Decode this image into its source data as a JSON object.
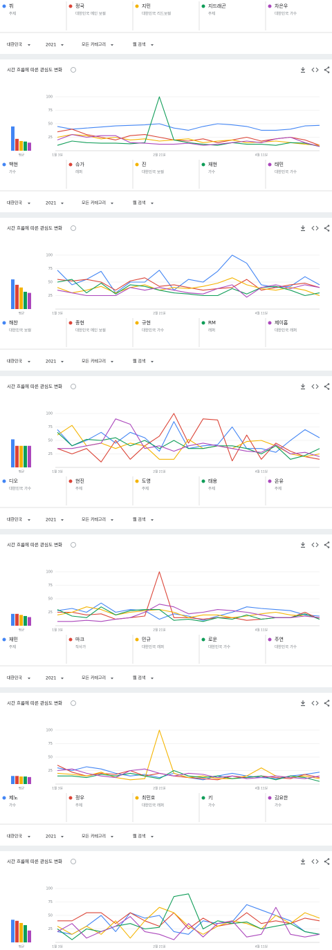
{
  "panels": [
    {
      "filters": [
        "대한민국",
        "2021",
        "모든 카테고리",
        "웹 검색"
      ]
    },
    {
      "filters": [
        "대한민국",
        "2021",
        "모든 카테고리",
        "웹 검색"
      ]
    },
    {
      "filters": [
        "대한민국",
        "2021",
        "모든 카테고리",
        "웹 검색"
      ]
    },
    {
      "filters": [
        "대한민국",
        "2021",
        "모든 카테고리",
        "웹 검색"
      ]
    },
    {
      "filters": [
        "대한민국",
        "2021",
        "모든 카테고리",
        "웹 검색"
      ]
    },
    {
      "filters": [
        "대한민국",
        "2021",
        "모든 카테고리",
        "웹 검색"
      ]
    }
  ],
  "chart_data": [
    {
      "type": "line",
      "title": "시간 흐름에 따른 관심도 변화",
      "average_label": "평균",
      "ylim": [
        0,
        100
      ],
      "yticks": [
        25,
        50,
        75,
        100
      ],
      "grid": true,
      "categories": [
        "1월 3일",
        null,
        null,
        null,
        null,
        null,
        null,
        "2월 21일",
        null,
        null,
        null,
        null,
        null,
        null,
        "4월 11일",
        null,
        null,
        null,
        null
      ],
      "series": [
        {
          "name": "뷔",
          "description": "주제",
          "color": "#4285f4",
          "average": 45,
          "values": [
            45,
            40,
            42,
            44,
            46,
            47,
            48,
            50,
            42,
            38,
            45,
            50,
            48,
            45,
            38,
            38,
            40,
            46,
            47
          ]
        },
        {
          "name": "정국",
          "description": "대한민국 메인 보컬",
          "color": "#db4437",
          "average": 22,
          "values": [
            35,
            40,
            30,
            25,
            20,
            28,
            30,
            25,
            20,
            18,
            22,
            15,
            20,
            25,
            18,
            22,
            25,
            20,
            10
          ]
        },
        {
          "name": "지민",
          "description": "대한민국 리드보컬",
          "color": "#f4b400",
          "average": 18,
          "values": [
            25,
            30,
            28,
            22,
            25,
            20,
            22,
            18,
            20,
            22,
            15,
            18,
            20,
            15,
            16,
            18,
            15,
            12,
            10
          ]
        },
        {
          "name": "지드래곤",
          "description": "주제",
          "color": "#0f9d58",
          "average": 17,
          "values": [
            10,
            18,
            15,
            14,
            14,
            13,
            15,
            100,
            20,
            15,
            12,
            10,
            15,
            12,
            12,
            10,
            15,
            14,
            8
          ]
        },
        {
          "name": "차은우",
          "description": "대한민국 가수",
          "color": "#ab47bc",
          "average": 15,
          "values": [
            20,
            30,
            25,
            28,
            28,
            15,
            14,
            12,
            12,
            14,
            10,
            12,
            15,
            18,
            15,
            22,
            25,
            15,
            8
          ]
        }
      ]
    },
    {
      "type": "line",
      "title": "시간 흐름에 따른 관심도 변화",
      "average_label": "평균",
      "ylim": [
        0,
        100
      ],
      "yticks": [
        25,
        50,
        75,
        100
      ],
      "grid": true,
      "categories": [
        "1월 3일",
        null,
        null,
        null,
        null,
        null,
        null,
        "2월 21일",
        null,
        null,
        null,
        null,
        null,
        null,
        "4월 11일",
        null,
        null,
        null,
        null
      ],
      "series": [
        {
          "name": "백현",
          "description": "가수",
          "color": "#4285f4",
          "average": 55,
          "values": [
            72,
            45,
            55,
            70,
            30,
            50,
            50,
            72,
            35,
            55,
            50,
            70,
            100,
            85,
            45,
            40,
            42,
            60,
            45
          ]
        },
        {
          "name": "슈가",
          "description": "래퍼",
          "color": "#db4437",
          "average": 45,
          "values": [
            55,
            52,
            55,
            50,
            35,
            52,
            58,
            42,
            45,
            40,
            35,
            38,
            40,
            55,
            35,
            40,
            45,
            48,
            40
          ]
        },
        {
          "name": "진",
          "description": "대한민국 보컬",
          "color": "#f4b400",
          "average": 40,
          "values": [
            40,
            30,
            35,
            42,
            30,
            40,
            45,
            35,
            40,
            38,
            42,
            48,
            58,
            45,
            38,
            35,
            40,
            35,
            25
          ]
        },
        {
          "name": "재현",
          "description": "가수",
          "color": "#0f9d58",
          "average": 32,
          "values": [
            50,
            55,
            30,
            48,
            28,
            45,
            42,
            35,
            30,
            28,
            25,
            25,
            38,
            28,
            40,
            42,
            35,
            25,
            30
          ]
        },
        {
          "name": "태민",
          "description": "대한민국 가수",
          "color": "#ab47bc",
          "average": 30,
          "values": [
            35,
            30,
            25,
            25,
            25,
            40,
            35,
            40,
            35,
            30,
            28,
            38,
            45,
            22,
            40,
            45,
            38,
            45,
            40
          ]
        }
      ]
    },
    {
      "type": "line",
      "title": "시간 흐름에 따른 관심도 변화",
      "average_label": "평균",
      "ylim": [
        0,
        100
      ],
      "yticks": [
        25,
        50,
        75,
        100
      ],
      "grid": true,
      "categories": [
        "1월 3일",
        null,
        null,
        null,
        null,
        null,
        null,
        "2월 21일",
        null,
        null,
        null,
        null,
        null,
        null,
        "4월 11일",
        null,
        null,
        null,
        null
      ],
      "series": [
        {
          "name": "해찬",
          "description": "대한민국 보컬",
          "color": "#4285f4",
          "average": 52,
          "values": [
            70,
            40,
            50,
            65,
            45,
            65,
            55,
            30,
            85,
            35,
            40,
            42,
            75,
            35,
            35,
            28,
            50,
            70,
            55
          ]
        },
        {
          "name": "종현",
          "description": "대한민국 메인 보컬",
          "color": "#db4437",
          "average": 40,
          "values": [
            35,
            25,
            35,
            10,
            50,
            15,
            40,
            58,
            100,
            45,
            90,
            88,
            12,
            60,
            15,
            45,
            30,
            20,
            15
          ]
        },
        {
          "name": "규현",
          "description": "대한민국 가수",
          "color": "#f4b400",
          "average": 40,
          "values": [
            60,
            78,
            40,
            45,
            35,
            45,
            40,
            15,
            15,
            52,
            35,
            40,
            35,
            48,
            50,
            40,
            25,
            20,
            25
          ]
        },
        {
          "name": "RM",
          "description": "래퍼",
          "color": "#0f9d58",
          "average": 40,
          "values": [
            65,
            40,
            52,
            50,
            55,
            40,
            50,
            35,
            50,
            35,
            35,
            40,
            40,
            35,
            25,
            40,
            15,
            22,
            35
          ]
        },
        {
          "name": "제이홉",
          "description": "대한민국 래퍼",
          "color": "#ab47bc",
          "average": 40,
          "values": [
            35,
            35,
            40,
            45,
            90,
            80,
            35,
            40,
            30,
            40,
            45,
            40,
            35,
            30,
            28,
            42,
            25,
            28,
            20
          ]
        }
      ]
    },
    {
      "type": "line",
      "title": "시간 흐름에 따른 관심도 변화",
      "average_label": "평균",
      "ylim": [
        0,
        100
      ],
      "yticks": [
        25,
        50,
        75,
        100
      ],
      "grid": true,
      "categories": [
        "1월 3일",
        null,
        null,
        null,
        null,
        null,
        null,
        "2월 21일",
        null,
        null,
        null,
        null,
        null,
        null,
        "4월 11일",
        null,
        null,
        null,
        null
      ],
      "series": [
        {
          "name": "디오",
          "description": "대한민국 가수",
          "color": "#4285f4",
          "average": 22,
          "values": [
            28,
            32,
            25,
            42,
            25,
            30,
            28,
            12,
            22,
            18,
            10,
            18,
            25,
            35,
            32,
            30,
            28,
            20,
            18
          ]
        },
        {
          "name": "현진",
          "description": "주제",
          "color": "#db4437",
          "average": 22,
          "values": [
            25,
            25,
            20,
            22,
            12,
            15,
            18,
            100,
            15,
            15,
            12,
            15,
            15,
            10,
            12,
            15,
            15,
            25,
            12
          ]
        },
        {
          "name": "도영",
          "description": "주제",
          "color": "#f4b400",
          "average": 20,
          "values": [
            20,
            25,
            35,
            30,
            20,
            25,
            28,
            30,
            25,
            15,
            20,
            20,
            15,
            18,
            22,
            25,
            20,
            18,
            15
          ]
        },
        {
          "name": "태용",
          "description": "주제",
          "color": "#0f9d58",
          "average": 18,
          "values": [
            30,
            18,
            15,
            35,
            20,
            28,
            30,
            30,
            10,
            12,
            8,
            15,
            12,
            20,
            12,
            15,
            15,
            22,
            12
          ]
        },
        {
          "name": "온유",
          "description": "주제",
          "color": "#ab47bc",
          "average": 16,
          "values": [
            8,
            8,
            10,
            8,
            12,
            15,
            25,
            40,
            35,
            22,
            25,
            30,
            28,
            25,
            20,
            15,
            15,
            18,
            15
          ]
        }
      ]
    },
    {
      "type": "line",
      "title": "시간 흐름에 따른 관심도 변화",
      "average_label": "평균",
      "ylim": [
        0,
        100
      ],
      "yticks": [
        25,
        50,
        75,
        100
      ],
      "grid": true,
      "categories": [
        "1월 3일",
        null,
        null,
        null,
        null,
        null,
        null,
        "2월 21일",
        null,
        null,
        null,
        null,
        null,
        null,
        "4월 11일",
        null,
        null,
        null,
        null
      ],
      "series": [
        {
          "name": "재민",
          "description": "주제",
          "color": "#4285f4",
          "average": 15,
          "values": [
            30,
            25,
            32,
            28,
            20,
            15,
            18,
            12,
            20,
            12,
            8,
            15,
            20,
            15,
            12,
            10,
            15,
            18,
            22
          ]
        },
        {
          "name": "마크",
          "description": "작사가",
          "color": "#db4437",
          "average": 15,
          "values": [
            35,
            22,
            15,
            20,
            18,
            25,
            15,
            20,
            15,
            12,
            10,
            8,
            15,
            12,
            15,
            12,
            10,
            18,
            12
          ]
        },
        {
          "name": "민규",
          "description": "대한민국 래퍼",
          "color": "#f4b400",
          "average": 14,
          "values": [
            20,
            18,
            15,
            22,
            12,
            8,
            10,
            100,
            20,
            12,
            15,
            10,
            10,
            15,
            30,
            15,
            12,
            15,
            10
          ]
        },
        {
          "name": "로운",
          "description": "대한민국 가수",
          "color": "#0f9d58",
          "average": 14,
          "values": [
            15,
            15,
            12,
            18,
            15,
            20,
            15,
            10,
            25,
            15,
            12,
            15,
            10,
            12,
            15,
            8,
            15,
            12,
            5
          ]
        },
        {
          "name": "주연",
          "description": "대한민국 가수",
          "color": "#ab47bc",
          "average": 13,
          "values": [
            25,
            28,
            20,
            15,
            12,
            25,
            28,
            20,
            15,
            20,
            18,
            12,
            15,
            10,
            12,
            15,
            12,
            10,
            15
          ]
        }
      ]
    },
    {
      "type": "line",
      "title": "시간 흐름에 따른 관심도 변화",
      "average_label": "평균",
      "ylim": [
        0,
        100
      ],
      "yticks": [
        25,
        50,
        75,
        100
      ],
      "grid": true,
      "categories": [
        "1월 3일",
        null,
        null,
        null,
        null,
        null,
        null,
        "2월 21일",
        null,
        null,
        null,
        null,
        null,
        null,
        "4월 11일",
        null,
        null,
        null,
        null
      ],
      "series": [
        {
          "name": "제노",
          "description": "가수",
          "color": "#4285f4",
          "average": 42,
          "values": [
            20,
            15,
            30,
            50,
            20,
            55,
            45,
            50,
            20,
            15,
            40,
            35,
            38,
            70,
            60,
            50,
            40,
            20,
            15
          ]
        },
        {
          "name": "정우",
          "description": "주제",
          "color": "#db4437",
          "average": 40,
          "values": [
            40,
            40,
            55,
            55,
            35,
            55,
            40,
            30,
            55,
            25,
            45,
            30,
            35,
            55,
            35,
            40,
            35,
            45,
            40
          ]
        },
        {
          "name": "최민호",
          "description": "대한민국 래퍼",
          "color": "#f4b400",
          "average": 36,
          "values": [
            30,
            15,
            30,
            15,
            40,
            8,
            40,
            65,
            55,
            30,
            15,
            30,
            40,
            35,
            25,
            50,
            35,
            55,
            45
          ]
        },
        {
          "name": "키",
          "description": "가수",
          "color": "#0f9d58",
          "average": 32,
          "values": [
            25,
            5,
            25,
            20,
            30,
            35,
            25,
            28,
            85,
            90,
            25,
            40,
            35,
            38,
            25,
            30,
            35,
            20,
            15
          ]
        },
        {
          "name": "김요한",
          "description": "가수",
          "color": "#ab47bc",
          "average": 22,
          "values": [
            20,
            35,
            8,
            20,
            30,
            48,
            20,
            15,
            5,
            35,
            10,
            35,
            40,
            10,
            15,
            65,
            15,
            10,
            15
          ]
        }
      ]
    }
  ]
}
